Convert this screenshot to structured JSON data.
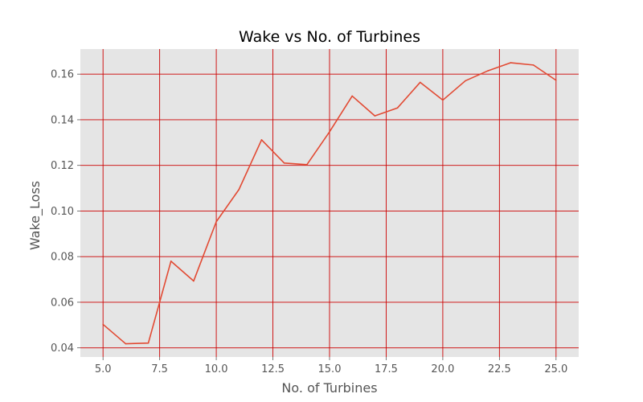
{
  "chart_data": {
    "type": "line",
    "title": "Wake vs No. of Turbines",
    "xlabel": "No. of Turbines",
    "ylabel": "Wake_Loss",
    "xlim": [
      4.0,
      26.0
    ],
    "ylim": [
      0.036,
      0.171
    ],
    "x_ticks": [
      5.0,
      7.5,
      10.0,
      12.5,
      15.0,
      17.5,
      20.0,
      22.5,
      25.0
    ],
    "x_tick_labels": [
      "5.0",
      "7.5",
      "10.0",
      "12.5",
      "15.0",
      "17.5",
      "20.0",
      "22.5",
      "25.0"
    ],
    "y_ticks": [
      0.04,
      0.06,
      0.08,
      0.1,
      0.12,
      0.14,
      0.16
    ],
    "y_tick_labels": [
      "0.04",
      "0.06",
      "0.08",
      "0.10",
      "0.12",
      "0.14",
      "0.16"
    ],
    "grid": true,
    "colors": {
      "line": "#e24a33",
      "grid": "#cc0000",
      "plot_bg": "#e5e5e5"
    },
    "series": [
      {
        "x": [
          5,
          6,
          7,
          8,
          9,
          10,
          11,
          12,
          13,
          14,
          15,
          16,
          17,
          18,
          19,
          20,
          21,
          22,
          23,
          24,
          25
        ],
        "values": [
          0.0503,
          0.0418,
          0.0421,
          0.078,
          0.0693,
          0.0953,
          0.1094,
          0.1312,
          0.121,
          0.1203,
          0.1347,
          0.1504,
          0.1417,
          0.1452,
          0.1564,
          0.1486,
          0.1571,
          0.1615,
          0.165,
          0.164,
          0.1573
        ]
      }
    ]
  }
}
